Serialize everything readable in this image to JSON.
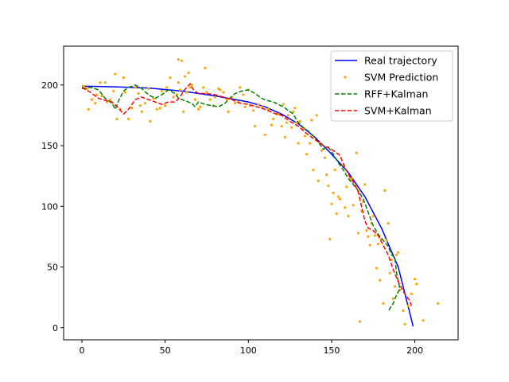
{
  "chart_data": {
    "type": "line",
    "title": "",
    "xlabel": "",
    "ylabel": "",
    "xlim": [
      -11,
      226
    ],
    "ylim": [
      -10,
      232
    ],
    "xticks": [
      0,
      50,
      100,
      150,
      200
    ],
    "yticks": [
      0,
      50,
      100,
      150,
      200
    ],
    "grid": false,
    "legend_position": "top-right",
    "series": [
      {
        "name": "Real trajectory",
        "kind": "line",
        "style": "solid",
        "color": "#0000ff",
        "points": [
          [
            0,
            199
          ],
          [
            20,
            198.5
          ],
          [
            40,
            197.5
          ],
          [
            60,
            195
          ],
          [
            80,
            191
          ],
          [
            100,
            186
          ],
          [
            110,
            182
          ],
          [
            120,
            176
          ],
          [
            130,
            168
          ],
          [
            140,
            157
          ],
          [
            150,
            143
          ],
          [
            160,
            128
          ],
          [
            170,
            108
          ],
          [
            180,
            82
          ],
          [
            190,
            50
          ],
          [
            199,
            1
          ]
        ]
      },
      {
        "name": "SVM Prediction",
        "kind": "scatter",
        "color": "#ffa500",
        "points": [
          [
            1,
            199
          ],
          [
            3,
            197
          ],
          [
            4,
            180
          ],
          [
            6,
            188
          ],
          [
            8,
            185
          ],
          [
            9,
            192
          ],
          [
            11,
            202
          ],
          [
            12,
            191
          ],
          [
            14,
            202
          ],
          [
            15,
            186
          ],
          [
            17,
            188
          ],
          [
            19,
            195
          ],
          [
            20,
            209
          ],
          [
            21,
            172
          ],
          [
            23,
            180
          ],
          [
            25,
            206
          ],
          [
            26,
            194
          ],
          [
            28,
            172
          ],
          [
            30,
            181
          ],
          [
            32,
            198
          ],
          [
            34,
            193
          ],
          [
            35,
            183
          ],
          [
            36,
            178
          ],
          [
            38,
            185
          ],
          [
            40,
            197
          ],
          [
            41,
            170
          ],
          [
            43,
            189
          ],
          [
            45,
            180
          ],
          [
            47,
            181
          ],
          [
            48,
            195
          ],
          [
            50,
            183
          ],
          [
            51,
            198
          ],
          [
            53,
            206
          ],
          [
            55,
            190
          ],
          [
            57,
            192
          ],
          [
            58,
            202
          ],
          [
            58,
            221
          ],
          [
            59,
            196
          ],
          [
            60,
            220
          ],
          [
            61,
            178
          ],
          [
            62,
            207
          ],
          [
            63,
            194
          ],
          [
            64,
            210
          ],
          [
            65,
            198
          ],
          [
            66,
            200
          ],
          [
            68,
            188
          ],
          [
            70,
            180
          ],
          [
            71,
            182
          ],
          [
            73,
            198
          ],
          [
            74,
            214
          ],
          [
            75,
            194
          ],
          [
            77,
            188
          ],
          [
            79,
            183
          ],
          [
            80,
            190
          ],
          [
            82,
            197
          ],
          [
            83,
            196
          ],
          [
            85,
            194
          ],
          [
            87,
            188
          ],
          [
            88,
            178
          ],
          [
            90,
            190
          ],
          [
            92,
            185
          ],
          [
            94,
            186
          ],
          [
            95,
            198
          ],
          [
            97,
            192
          ],
          [
            98,
            182
          ],
          [
            100,
            196
          ],
          [
            101,
            183
          ],
          [
            103,
            179
          ],
          [
            104,
            166
          ],
          [
            106,
            184
          ],
          [
            108,
            182
          ],
          [
            110,
            159
          ],
          [
            112,
            180
          ],
          [
            114,
            167
          ],
          [
            115,
            172
          ],
          [
            117,
            176
          ],
          [
            118,
            176
          ],
          [
            120,
            166
          ],
          [
            121,
            184
          ],
          [
            122,
            157
          ],
          [
            123,
            169
          ],
          [
            124,
            175
          ],
          [
            126,
            165
          ],
          [
            127,
            178
          ],
          [
            128,
            181
          ],
          [
            129,
            169
          ],
          [
            130,
            152
          ],
          [
            131,
            170
          ],
          [
            133,
            164
          ],
          [
            134,
            158
          ],
          [
            135,
            143
          ],
          [
            137,
            152
          ],
          [
            138,
            171
          ],
          [
            139,
            130
          ],
          [
            141,
            175
          ],
          [
            142,
            121
          ],
          [
            143,
            152
          ],
          [
            144,
            146
          ],
          [
            146,
            140
          ],
          [
            147,
            126
          ],
          [
            148,
            117
          ],
          [
            149,
            73
          ],
          [
            150,
            102
          ],
          [
            151,
            111
          ],
          [
            152,
            130
          ],
          [
            153,
            94
          ],
          [
            154,
            108
          ],
          [
            155,
            106
          ],
          [
            157,
            134
          ],
          [
            158,
            99
          ],
          [
            159,
            116
          ],
          [
            160,
            92
          ],
          [
            161,
            122
          ],
          [
            162,
            123
          ],
          [
            163,
            101
          ],
          [
            164,
            117
          ],
          [
            165,
            144
          ],
          [
            166,
            78
          ],
          [
            167,
            5
          ],
          [
            168,
            96
          ],
          [
            169,
            104
          ],
          [
            170,
            118
          ],
          [
            171,
            80
          ],
          [
            172,
            75
          ],
          [
            173,
            68
          ],
          [
            174,
            86
          ],
          [
            175,
            92
          ],
          [
            176,
            76
          ],
          [
            177,
            49
          ],
          [
            178,
            69
          ],
          [
            179,
            39
          ],
          [
            180,
            73
          ],
          [
            181,
            20
          ],
          [
            182,
            113
          ],
          [
            183,
            72
          ],
          [
            184,
            86
          ],
          [
            185,
            45
          ],
          [
            186,
            56
          ],
          [
            187,
            24
          ],
          [
            188,
            34
          ],
          [
            189,
            60
          ],
          [
            190,
            62
          ],
          [
            191,
            31
          ],
          [
            193,
            14
          ],
          [
            194,
            3
          ],
          [
            196,
            18
          ],
          [
            198,
            28
          ],
          [
            200,
            40
          ],
          [
            201,
            36
          ],
          [
            205,
            6
          ],
          [
            214,
            20
          ]
        ]
      },
      {
        "name": "RFF+Kalman",
        "kind": "line",
        "style": "dashed",
        "color": "#008000",
        "points": [
          [
            0,
            197
          ],
          [
            5,
            198
          ],
          [
            10,
            196
          ],
          [
            14,
            189
          ],
          [
            18,
            185
          ],
          [
            20,
            180
          ],
          [
            22,
            187
          ],
          [
            25,
            195
          ],
          [
            28,
            198
          ],
          [
            32,
            200
          ],
          [
            36,
            197
          ],
          [
            40,
            192
          ],
          [
            44,
            189
          ],
          [
            48,
            192
          ],
          [
            52,
            196
          ],
          [
            56,
            193
          ],
          [
            58,
            189
          ],
          [
            62,
            187
          ],
          [
            66,
            185
          ],
          [
            68,
            182
          ],
          [
            70,
            186
          ],
          [
            74,
            184
          ],
          [
            78,
            183
          ],
          [
            82,
            182
          ],
          [
            86,
            185
          ],
          [
            88,
            188
          ],
          [
            92,
            193
          ],
          [
            96,
            195
          ],
          [
            100,
            196
          ],
          [
            104,
            193
          ],
          [
            108,
            189
          ],
          [
            112,
            187
          ],
          [
            115,
            186
          ],
          [
            118,
            184
          ],
          [
            121,
            182
          ],
          [
            124,
            179
          ],
          [
            127,
            176
          ],
          [
            130,
            169
          ],
          [
            133,
            165
          ],
          [
            136,
            162
          ],
          [
            139,
            158
          ],
          [
            142,
            153
          ],
          [
            145,
            147
          ],
          [
            148,
            149
          ],
          [
            151,
            143
          ],
          [
            154,
            136
          ],
          [
            157,
            130
          ],
          [
            160,
            123
          ],
          [
            163,
            118
          ],
          [
            166,
            113
          ],
          [
            169,
            106
          ],
          [
            172,
            95
          ],
          [
            175,
            84
          ],
          [
            178,
            77
          ],
          [
            181,
            72
          ],
          [
            184,
            67
          ],
          [
            186,
            60
          ],
          [
            188,
            58
          ],
          [
            189,
            45
          ],
          [
            190,
            39
          ],
          [
            191,
            32
          ],
          [
            189,
            27
          ],
          [
            187,
            20
          ],
          [
            185,
            16
          ],
          [
            184,
            13
          ]
        ]
      },
      {
        "name": "SVM+Kalman",
        "kind": "line",
        "style": "dashed",
        "color": "#ff0000",
        "points": [
          [
            0,
            198
          ],
          [
            5,
            194
          ],
          [
            10,
            189
          ],
          [
            15,
            187
          ],
          [
            18,
            186
          ],
          [
            22,
            181
          ],
          [
            25,
            176
          ],
          [
            28,
            180
          ],
          [
            32,
            188
          ],
          [
            36,
            190
          ],
          [
            40,
            188
          ],
          [
            44,
            186
          ],
          [
            48,
            184
          ],
          [
            52,
            186
          ],
          [
            56,
            186
          ],
          [
            59,
            190
          ],
          [
            61,
            195
          ],
          [
            63,
            198
          ],
          [
            65,
            201
          ],
          [
            67,
            196
          ],
          [
            70,
            193
          ],
          [
            75,
            193
          ],
          [
            80,
            192
          ],
          [
            85,
            190
          ],
          [
            90,
            188
          ],
          [
            95,
            185
          ],
          [
            100,
            184
          ],
          [
            105,
            182
          ],
          [
            110,
            180
          ],
          [
            115,
            177
          ],
          [
            120,
            175
          ],
          [
            125,
            170
          ],
          [
            130,
            166
          ],
          [
            135,
            160
          ],
          [
            140,
            155
          ],
          [
            145,
            150
          ],
          [
            150,
            147
          ],
          [
            155,
            142
          ],
          [
            158,
            132
          ],
          [
            161,
            124
          ],
          [
            164,
            118
          ],
          [
            166,
            112
          ],
          [
            168,
            100
          ],
          [
            170,
            88
          ],
          [
            172,
            82
          ],
          [
            175,
            80
          ],
          [
            178,
            76
          ],
          [
            181,
            68
          ],
          [
            184,
            60
          ],
          [
            187,
            48
          ],
          [
            190,
            38
          ],
          [
            193,
            30
          ],
          [
            195,
            26
          ],
          [
            197,
            22
          ],
          [
            198,
            18
          ]
        ]
      }
    ]
  }
}
